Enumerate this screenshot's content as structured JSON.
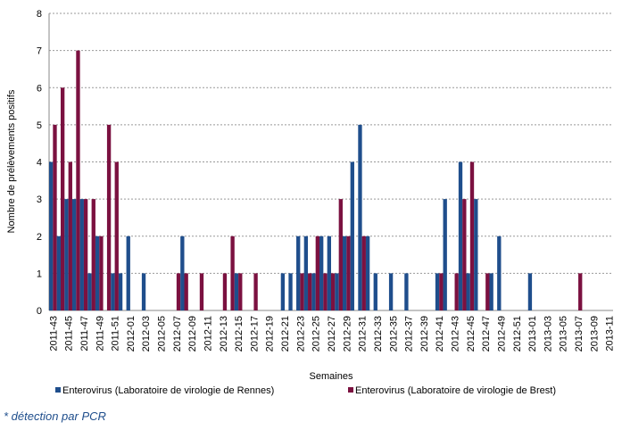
{
  "chart_data": {
    "type": "bar",
    "y_label": "Nombre de prélèvements positifs",
    "x_label": "Semaines",
    "footnote": "* détection par PCR",
    "categories": [
      "2011-43",
      null,
      "2011-45",
      null,
      "2011-47",
      null,
      "2011-49",
      null,
      "2011-51",
      null,
      "2012-01",
      null,
      "2012-03",
      null,
      "2012-05",
      null,
      "2012-07",
      null,
      "2012-09",
      null,
      "2012-11",
      null,
      "2012-13",
      null,
      "2012-15",
      null,
      "2012-17",
      null,
      "2012-19",
      null,
      "2012-21",
      null,
      "2012-23",
      null,
      "2012-25",
      null,
      "2012-27",
      null,
      "2012-29",
      null,
      "2012-31",
      null,
      "2012-33",
      null,
      "2012-35",
      null,
      "2012-37",
      null,
      "2012-39",
      null,
      "2012-41",
      null,
      "2012-43",
      null,
      "2012-45",
      null,
      "2012-47",
      null,
      "2012-49",
      null,
      "2012-51",
      null,
      "2013-01",
      null,
      "2013-03",
      null,
      "2013-05",
      null,
      "2013-07",
      null,
      "2013-09",
      null,
      "2013-11"
    ],
    "series": [
      {
        "name": "Enterovirus (Laboratoire de virologie de Rennes)",
        "color": "#1f4e8c",
        "values": [
          4,
          2,
          3,
          3,
          3,
          1,
          2,
          0,
          1,
          1,
          2,
          0,
          1,
          0,
          0,
          0,
          0,
          2,
          0,
          0,
          0,
          0,
          0,
          0,
          1,
          0,
          0,
          0,
          0,
          0,
          1,
          1,
          2,
          2,
          1,
          2,
          2,
          1,
          2,
          4,
          5,
          2,
          1,
          0,
          1,
          0,
          1,
          0,
          0,
          0,
          1,
          3,
          0,
          4,
          1,
          3,
          0,
          1,
          2,
          0,
          0,
          0,
          1,
          0,
          0,
          0,
          0,
          0,
          0,
          0,
          0,
          0,
          0
        ]
      },
      {
        "name": "Enterovirus (Laboratoire de virologie de Brest)",
        "color": "#7b1140",
        "values": [
          5,
          6,
          4,
          7,
          3,
          3,
          2,
          5,
          4,
          0,
          0,
          0,
          0,
          0,
          0,
          0,
          1,
          1,
          0,
          1,
          0,
          0,
          1,
          2,
          1,
          0,
          1,
          0,
          0,
          0,
          0,
          0,
          1,
          1,
          2,
          1,
          1,
          3,
          2,
          0,
          2,
          0,
          0,
          0,
          0,
          0,
          0,
          0,
          0,
          0,
          1,
          0,
          1,
          3,
          4,
          0,
          1,
          0,
          0,
          0,
          0,
          0,
          0,
          0,
          0,
          0,
          0,
          0,
          1,
          0,
          0,
          0,
          0
        ]
      }
    ],
    "ylim": [
      0,
      8
    ],
    "yticks": [
      0,
      1,
      2,
      3,
      4,
      5,
      6,
      7,
      8
    ],
    "grid": true
  }
}
